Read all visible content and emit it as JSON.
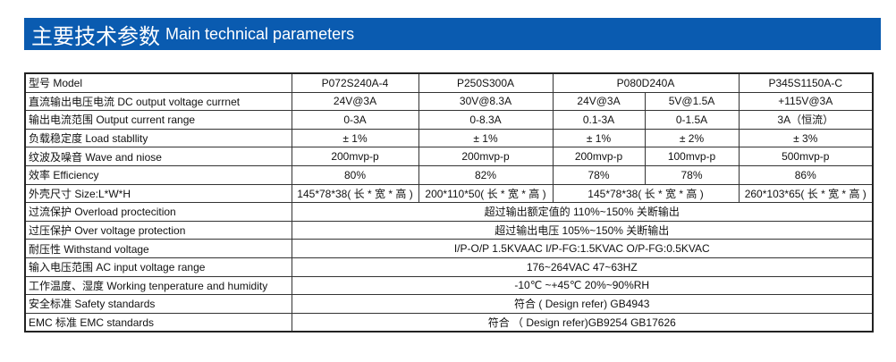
{
  "header": {
    "title_cn": "主要技术参数",
    "title_en": "Main technical parameters",
    "color": "#0a5bb0"
  },
  "table": {
    "model": {
      "label": "型号 Model",
      "values": [
        "P072S240A-4",
        "P250S300A",
        "P080D240A",
        "P345S1150A-C"
      ]
    },
    "dc_output": {
      "label": "直流输出电压电流 DC output voltage currnet",
      "values": [
        "24V@3A",
        "30V@8.3A",
        "24V@3A",
        "5V@1.5A",
        "+115V@3A"
      ]
    },
    "current_range": {
      "label": "输出电流范围  Output current range",
      "values": [
        "0-3A",
        "0-8.3A",
        "0.1-3A",
        "0-1.5A",
        "3A（恒流）"
      ]
    },
    "load_stability": {
      "label": "负载稳定度 Load stabllity",
      "values": [
        "± 1%",
        "± 1%",
        "± 1%",
        "± 2%",
        "± 3%"
      ]
    },
    "ripple": {
      "label": "纹波及噪音 Wave and niose",
      "values": [
        "200mvp-p",
        "200mvp-p",
        "200mvp-p",
        "100mvp-p",
        "500mvp-p"
      ]
    },
    "efficiency": {
      "label": "效率 Efficiency",
      "values": [
        "80%",
        "82%",
        "78%",
        "78%",
        "86%"
      ]
    },
    "size": {
      "label": "外壳尺寸 Size:L*W*H",
      "values": [
        "145*78*38( 长 * 宽 * 高 )",
        "200*110*50( 长 * 宽 * 高 )",
        "145*78*38( 长 * 宽 * 高 )",
        "260*103*65( 长 * 宽 * 高 )"
      ]
    },
    "overload": {
      "label": "过流保护 Overload proctecition",
      "value": "超过输出额定值的 110%~150% 关断输出"
    },
    "overvoltage": {
      "label": "过压保护 Over voltage protection",
      "value": "超过输出电压 105%~150% 关断输出"
    },
    "withstand": {
      "label": "耐压性 Withstand voltage",
      "value": "I/P-O/P 1.5KVAAC  I/P-FG:1.5KVAC  O/P-FG:0.5KVAC"
    },
    "input_range": {
      "label": "输入电压范围 AC input voltage range",
      "value": "176~264VAC  47~63HZ"
    },
    "temperature": {
      "label": "工作温度、湿度 Working tenperature and humidity",
      "value": "-10℃ ~+45℃  20%~90%RH"
    },
    "safety": {
      "label": "安全标准 Safety standards",
      "value": "符合 ( Design refer) GB4943"
    },
    "emc": {
      "label": "EMC 标准 EMC standards",
      "value": "符合 （ Design refer)GB9254     GB17626"
    }
  }
}
